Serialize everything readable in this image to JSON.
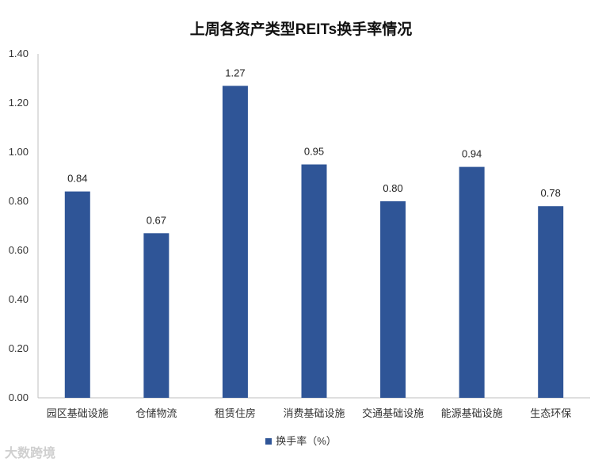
{
  "chart_data": {
    "type": "bar",
    "title": "上周各资产类型REITs换手率情况",
    "categories": [
      "园区基础设施",
      "仓储物流",
      "租赁住房",
      "消费基础设施",
      "交通基础设施",
      "能源基础设施",
      "生态环保"
    ],
    "series": [
      {
        "name": "换手率（%）",
        "values": [
          0.84,
          0.67,
          1.27,
          0.95,
          0.8,
          0.94,
          0.78
        ],
        "labels": [
          "0.84",
          "0.67",
          "1.27",
          "0.95",
          "0.80",
          "0.94",
          "0.78"
        ]
      }
    ],
    "ylim": [
      0,
      1.4
    ],
    "yticks": [
      "0.00",
      "0.20",
      "0.40",
      "0.60",
      "0.80",
      "1.00",
      "1.20",
      "1.40"
    ],
    "xlabel": "",
    "ylabel": "",
    "grid": false,
    "legend_position": "bottom",
    "bar_color": "#2F5597",
    "axis_color": "#BFBFBF"
  },
  "watermark": "大数跨境"
}
